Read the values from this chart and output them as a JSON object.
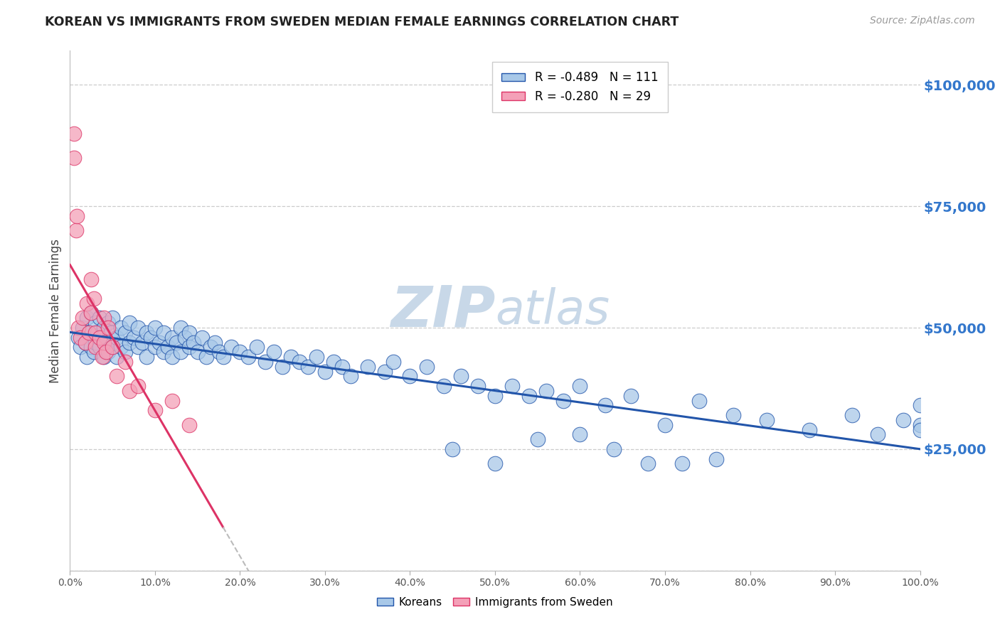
{
  "title": "KOREAN VS IMMIGRANTS FROM SWEDEN MEDIAN FEMALE EARNINGS CORRELATION CHART",
  "source": "Source: ZipAtlas.com",
  "ylabel": "Median Female Earnings",
  "yticks": [
    0,
    25000,
    50000,
    75000,
    100000
  ],
  "ytick_labels": [
    "",
    "$25,000",
    "$50,000",
    "$75,000",
    "$100,000"
  ],
  "xmin": 0.0,
  "xmax": 1.0,
  "ymin": 0,
  "ymax": 107000,
  "korean_R": -0.489,
  "korean_N": 111,
  "sweden_R": -0.28,
  "sweden_N": 29,
  "blue_color": "#A8C8E8",
  "pink_color": "#F4A0B8",
  "trendline_blue": "#2255AA",
  "trendline_pink": "#DD3366",
  "trendline_dashed_color": "#BBBBBB",
  "background_color": "#FFFFFF",
  "grid_color": "#CCCCCC",
  "right_tick_color": "#3377CC",
  "title_color": "#222222",
  "watermark_color": "#C8D8E8",
  "legend_label_blue": "R = -0.489   N = 111",
  "legend_label_pink": "R = -0.280   N = 29",
  "legend_bottom_blue": "Koreans",
  "legend_bottom_pink": "Immigrants from Sweden",
  "korean_x": [
    0.01,
    0.012,
    0.015,
    0.018,
    0.02,
    0.02,
    0.022,
    0.025,
    0.025,
    0.028,
    0.03,
    0.03,
    0.032,
    0.035,
    0.035,
    0.038,
    0.04,
    0.04,
    0.042,
    0.045,
    0.045,
    0.048,
    0.05,
    0.05,
    0.055,
    0.055,
    0.06,
    0.06,
    0.065,
    0.065,
    0.07,
    0.07,
    0.075,
    0.08,
    0.08,
    0.085,
    0.09,
    0.09,
    0.095,
    0.1,
    0.1,
    0.105,
    0.11,
    0.11,
    0.115,
    0.12,
    0.12,
    0.125,
    0.13,
    0.13,
    0.135,
    0.14,
    0.14,
    0.145,
    0.15,
    0.155,
    0.16,
    0.165,
    0.17,
    0.175,
    0.18,
    0.19,
    0.2,
    0.21,
    0.22,
    0.23,
    0.24,
    0.25,
    0.26,
    0.27,
    0.28,
    0.29,
    0.3,
    0.31,
    0.32,
    0.33,
    0.35,
    0.37,
    0.38,
    0.4,
    0.42,
    0.44,
    0.46,
    0.48,
    0.5,
    0.52,
    0.54,
    0.56,
    0.58,
    0.6,
    0.63,
    0.66,
    0.7,
    0.74,
    0.78,
    0.82,
    0.87,
    0.92,
    0.95,
    0.98,
    1.0,
    1.0,
    1.0,
    0.72,
    0.76,
    0.68,
    0.64,
    0.6,
    0.55,
    0.5,
    0.45
  ],
  "korean_y": [
    48000,
    46000,
    50000,
    47000,
    52000,
    44000,
    49000,
    46000,
    53000,
    45000,
    51000,
    47000,
    49000,
    46000,
    52000,
    48000,
    50000,
    44000,
    47000,
    51000,
    45000,
    49000,
    52000,
    46000,
    48000,
    44000,
    50000,
    46000,
    49000,
    45000,
    47000,
    51000,
    48000,
    46000,
    50000,
    47000,
    49000,
    44000,
    48000,
    46000,
    50000,
    47000,
    45000,
    49000,
    46000,
    48000,
    44000,
    47000,
    50000,
    45000,
    48000,
    46000,
    49000,
    47000,
    45000,
    48000,
    44000,
    46000,
    47000,
    45000,
    44000,
    46000,
    45000,
    44000,
    46000,
    43000,
    45000,
    42000,
    44000,
    43000,
    42000,
    44000,
    41000,
    43000,
    42000,
    40000,
    42000,
    41000,
    43000,
    40000,
    42000,
    38000,
    40000,
    38000,
    36000,
    38000,
    36000,
    37000,
    35000,
    38000,
    34000,
    36000,
    30000,
    35000,
    32000,
    31000,
    29000,
    32000,
    28000,
    31000,
    30000,
    34000,
    29000,
    22000,
    23000,
    22000,
    25000,
    28000,
    27000,
    22000,
    25000
  ],
  "sweden_x": [
    0.01,
    0.012,
    0.015,
    0.018,
    0.02,
    0.022,
    0.025,
    0.025,
    0.028,
    0.03,
    0.03,
    0.035,
    0.038,
    0.04,
    0.04,
    0.042,
    0.045,
    0.05,
    0.055,
    0.065,
    0.07,
    0.08,
    0.1,
    0.12,
    0.14,
    0.005,
    0.005,
    0.007,
    0.008
  ],
  "sweden_y": [
    50000,
    48000,
    52000,
    47000,
    55000,
    49000,
    60000,
    53000,
    56000,
    49000,
    46000,
    48000,
    44000,
    47000,
    52000,
    45000,
    50000,
    46000,
    40000,
    43000,
    37000,
    38000,
    33000,
    35000,
    30000,
    85000,
    90000,
    70000,
    73000
  ]
}
